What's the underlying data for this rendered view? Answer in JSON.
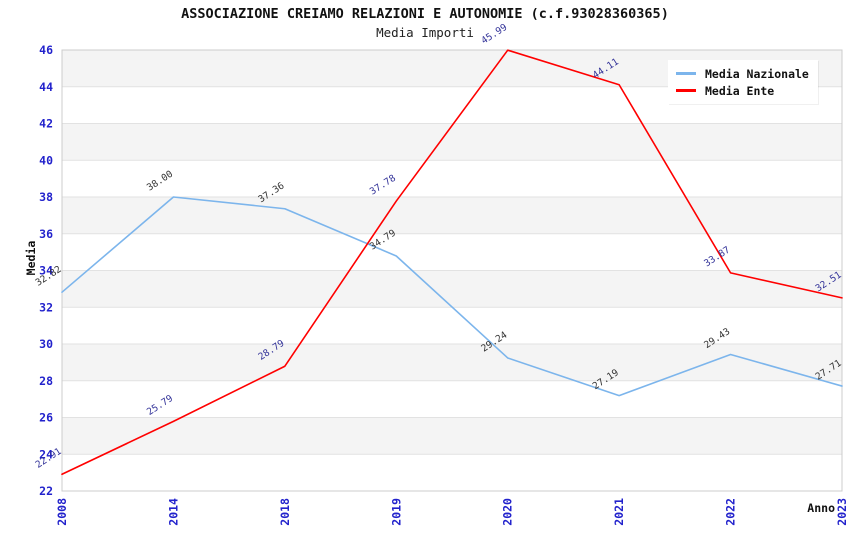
{
  "chart_data": {
    "type": "line",
    "title": "ASSOCIAZIONE CREIAMO RELAZIONI E AUTONOMIE (c.f.93028360365)",
    "subtitle": "Media Importi",
    "xlabel": "Anno",
    "ylabel": "Media",
    "categories": [
      "2008",
      "2014",
      "2018",
      "2019",
      "2020",
      "2021",
      "2022",
      "2023"
    ],
    "series": [
      {
        "name": "Media Nazionale",
        "color": "#7cb5ec",
        "label_color": "#333333",
        "values": [
          32.82,
          38.0,
          37.36,
          34.79,
          29.24,
          27.19,
          29.43,
          27.71
        ]
      },
      {
        "name": "Media Ente",
        "color": "#ff0000",
        "label_color": "#333399",
        "values": [
          22.91,
          25.79,
          28.79,
          37.78,
          45.99,
          44.11,
          33.87,
          32.51
        ]
      }
    ],
    "ylim": [
      22,
      46
    ],
    "ytick_step": 2,
    "yticks": [
      22,
      24,
      26,
      28,
      30,
      32,
      34,
      36,
      38,
      40,
      42,
      44,
      46
    ],
    "grid": "horizontal striped bands",
    "band_color": "#f4f4f4",
    "gridline_color": "#e2e2e2",
    "border_color": "#cccccc",
    "tick_label_color": "#2222cc",
    "legend_position": "top-right",
    "data_labels": "shown, rotated, two decimals"
  }
}
